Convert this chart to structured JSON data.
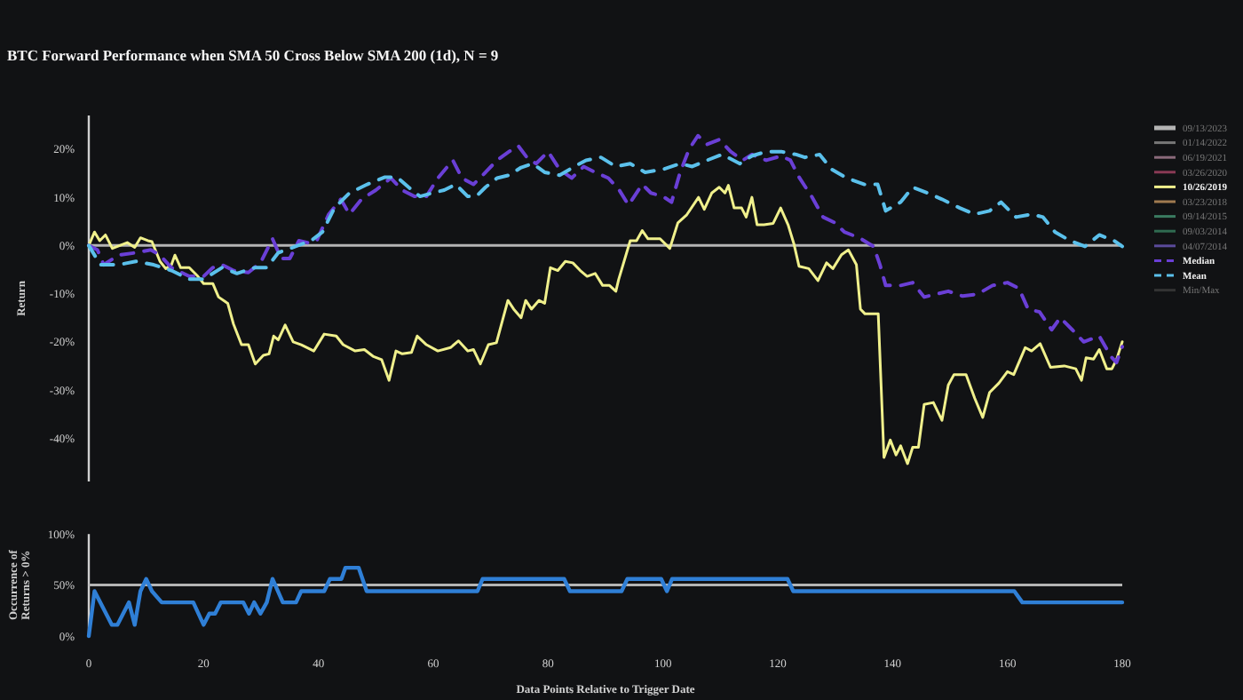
{
  "chart_data": [
    {
      "type": "line",
      "title": "BTC Forward Performance when SMA 50 Cross Below SMA 200 (1d), N = 9",
      "ylabel": "Return",
      "xlim": [
        0,
        180
      ],
      "ylim": [
        -49,
        27
      ],
      "yticks": [
        {
          "value": -40,
          "label": "-40%"
        },
        {
          "value": -30,
          "label": "-30%"
        },
        {
          "value": -20,
          "label": "-20%"
        },
        {
          "value": -10,
          "label": "-10%"
        },
        {
          "value": 0,
          "label": "0%"
        },
        {
          "value": 10,
          "label": "10%"
        },
        {
          "value": 20,
          "label": "20%"
        }
      ],
      "tick_labels": "y",
      "grid": false,
      "legend": "right",
      "marker": "none",
      "ref_lines": [
        {
          "axis": "y",
          "value": 0,
          "color": "#b4b4b4"
        }
      ],
      "series": [
        {
          "name": "09/13/2023",
          "color": "#b4b4b4"
        },
        {
          "name": "01/14/2022",
          "color": "#777777"
        },
        {
          "name": "06/19/2021",
          "color": "#8a6a7a"
        },
        {
          "name": "03/26/2020",
          "color": "#8a3a55"
        },
        {
          "name": "10/26/2019",
          "color": "#f0f08c",
          "x": [
            0,
            1,
            1.9,
            2.9,
            4.1,
            6.7,
            8,
            9,
            10.3,
            11,
            12.4,
            13.4,
            14.4,
            15,
            16,
            17.5,
            19,
            20,
            21.6,
            22.6,
            24.2,
            25.2,
            26.6,
            27.8,
            29,
            30.4,
            31.4,
            32.2,
            33,
            34.2,
            35.6,
            37,
            39.2,
            41,
            43.1,
            44.3,
            46.4,
            48,
            49.5,
            51,
            52.3,
            53.5,
            54.6,
            56.2,
            57.2,
            58.8,
            60.8,
            63,
            64.4,
            66,
            67,
            68.2,
            69.6,
            71,
            73,
            74,
            75.3,
            76.1,
            77.1,
            78.4,
            79.4,
            80.4,
            81.7,
            83,
            84.3,
            85.6,
            86.8,
            88.2,
            89.5,
            90.7,
            91.8,
            92.3,
            94.3,
            95.4,
            96.4,
            97.4,
            99.5,
            101.2,
            102.6,
            104.1,
            106.2,
            107.2,
            108.5,
            109.8,
            110.8,
            111.4,
            112.4,
            113.7,
            114.5,
            115.5,
            116.4,
            117.6,
            119.2,
            120.5,
            121.8,
            122.8,
            123.7,
            125.4,
            127,
            128.5,
            129.6,
            131.1,
            132.3,
            133.7,
            134.4,
            135.2,
            137.5,
            138.5,
            139.6,
            140.6,
            141.4,
            142.6,
            143.5,
            144.5,
            145.5,
            147.1,
            148.6,
            149.7,
            150.7,
            152.8,
            154.3,
            155.7,
            156.9,
            158.5,
            160,
            161.1,
            163.1,
            164.2,
            165.7,
            167.5,
            169.9,
            171.9,
            172.9,
            173.7,
            175,
            176,
            177.3,
            178.2,
            179,
            180
          ],
          "values": [
            0,
            2.8,
            1,
            2.2,
            -0.6,
            0.6,
            -0.4,
            1.6,
            1,
            0.8,
            -3.3,
            -4.8,
            -4,
            -2,
            -4.6,
            -4.6,
            -6.4,
            -7.9,
            -7.9,
            -10.7,
            -12,
            -16.3,
            -20.6,
            -20.6,
            -24.6,
            -22.8,
            -22.5,
            -18.8,
            -19.6,
            -16.5,
            -20,
            -20.6,
            -21.9,
            -18.4,
            -18.8,
            -20.6,
            -21.9,
            -21.6,
            -23,
            -23.7,
            -28,
            -21.9,
            -22.5,
            -22.2,
            -18.8,
            -20.6,
            -21.9,
            -21.2,
            -19.8,
            -21.9,
            -21.6,
            -24.6,
            -20.6,
            -20.2,
            -11.4,
            -13.2,
            -15,
            -11.4,
            -13.2,
            -11.4,
            -12,
            -4.6,
            -5.2,
            -3.3,
            -3.6,
            -5.2,
            -6.4,
            -5.8,
            -8.3,
            -8.3,
            -9.5,
            -7,
            1,
            1,
            3.1,
            1.4,
            1.4,
            -0.6,
            4.7,
            6.3,
            10,
            7.5,
            10.9,
            12.1,
            10.9,
            12.5,
            7.8,
            7.8,
            5.9,
            10,
            4.3,
            4.3,
            4.6,
            7.8,
            4.3,
            0.4,
            -4.3,
            -4.8,
            -7.3,
            -3.6,
            -4.8,
            -1.9,
            -0.9,
            -4,
            -13.2,
            -14.2,
            -14.2,
            -44,
            -40.4,
            -43.5,
            -41.6,
            -45.3,
            -41.9,
            -41.9,
            -33,
            -32.6,
            -36.3,
            -29,
            -26.8,
            -26.8,
            -31.7,
            -35.7,
            -30.5,
            -28.6,
            -26.2,
            -26.8,
            -21.2,
            -21.9,
            -20.4,
            -25.3,
            -25,
            -25.6,
            -28,
            -23.3,
            -23.6,
            -21.6,
            -25.6,
            -25.6,
            -23.7,
            -20
          ]
        },
        {
          "name": "03/23/2018",
          "color": "#a07a50"
        },
        {
          "name": "09/14/2015",
          "color": "#3a7a60"
        },
        {
          "name": "09/03/2014",
          "color": "#2f6a50"
        },
        {
          "name": "04/07/2014",
          "color": "#5a4a9a"
        },
        {
          "name": "Median",
          "color": "#6a3fd6",
          "line_style": "dashed",
          "x": [
            0,
            1.5,
            2.6,
            5.2,
            8.2,
            10.8,
            12.4,
            14.4,
            17.5,
            20,
            21.6,
            23.2,
            25.2,
            27.8,
            29.9,
            32,
            33.5,
            35,
            36.6,
            38.1,
            39.7,
            41.8,
            43.9,
            45.4,
            47.5,
            50,
            52.6,
            54.6,
            56.7,
            58.8,
            60.8,
            63.4,
            65,
            67,
            69.1,
            71.1,
            73.2,
            74.8,
            76.3,
            77.9,
            80,
            82,
            84.1,
            86.2,
            88.2,
            90.5,
            92.4,
            94,
            96.4,
            97.9,
            100,
            101.5,
            103,
            104.6,
            106.1,
            107.7,
            109.8,
            111.8,
            113.9,
            115.5,
            118,
            120.6,
            122.2,
            123.8,
            125.9,
            127.9,
            130,
            131.6,
            134.2,
            136.7,
            137.8,
            138.8,
            141.4,
            143.5,
            145.5,
            147.6,
            149.7,
            152.2,
            154.8,
            157.4,
            160,
            162,
            163.6,
            165.6,
            167.7,
            169.2,
            171.3,
            173.3,
            176,
            178,
            179,
            180
          ],
          "values": [
            0,
            -0.9,
            -4,
            -2,
            -1.5,
            -0.9,
            -2,
            -4.6,
            -6.4,
            -6.4,
            -4.6,
            -4,
            -5.2,
            -5.6,
            -3.6,
            1.4,
            -2.7,
            -2.7,
            1,
            0.6,
            1,
            6.5,
            9.6,
            6.5,
            9.6,
            11.5,
            14,
            11.5,
            10.2,
            10.2,
            14,
            17.7,
            14,
            12.7,
            15.2,
            17.7,
            19.5,
            20.7,
            18.3,
            17,
            19.5,
            15.8,
            14,
            16.4,
            15.2,
            14,
            11.5,
            8.4,
            12.7,
            10.9,
            10.2,
            9,
            15.2,
            20.1,
            22.8,
            21,
            22,
            19.5,
            17.7,
            18.9,
            17.7,
            18.6,
            17.7,
            14,
            10.2,
            5.9,
            4.7,
            2.8,
            1.6,
            -0.2,
            -4,
            -8.3,
            -8.3,
            -7.7,
            -10.7,
            -10.1,
            -9.5,
            -10.5,
            -10.1,
            -8.3,
            -7.7,
            -8.9,
            -13.2,
            -13.8,
            -17.5,
            -15,
            -17.5,
            -20,
            -18.8,
            -23,
            -24.3,
            -21
          ]
        },
        {
          "name": "Mean",
          "color": "#5bc0eb",
          "line_style": "dashed",
          "x": [
            0,
            2,
            5.2,
            8.2,
            11.3,
            14.4,
            17.5,
            20,
            23.2,
            25.8,
            28.9,
            31,
            33,
            36,
            38.7,
            40.7,
            42.8,
            45.4,
            48.5,
            51.6,
            53.7,
            55.7,
            57.7,
            59.8,
            61.9,
            63.9,
            66,
            67.5,
            69.1,
            71.1,
            73.2,
            75.3,
            77.3,
            79.4,
            82,
            84.6,
            86.6,
            89.2,
            91.8,
            94.3,
            96.9,
            100,
            103,
            105.1,
            107.7,
            110.3,
            113.4,
            115.5,
            118,
            120.6,
            123.2,
            124.7,
            127.3,
            129.4,
            132,
            135.1,
            137.4,
            138.8,
            141.4,
            143.5,
            146.1,
            148.6,
            151.7,
            154.3,
            156.9,
            158.9,
            161.5,
            164.2,
            166.2,
            168.3,
            170.9,
            173.5,
            176,
            178.6,
            180
          ],
          "values": [
            0,
            -4,
            -4,
            -3.3,
            -4,
            -5.2,
            -7,
            -7,
            -4.6,
            -5.8,
            -4.6,
            -4.6,
            -1.5,
            -0.2,
            1,
            2.8,
            7.8,
            10.9,
            12.7,
            14.2,
            14.2,
            12.1,
            10.2,
            10.9,
            11.5,
            12.7,
            10.2,
            10.2,
            12.1,
            14,
            14.6,
            16.2,
            17,
            15.2,
            14.6,
            16.4,
            17.7,
            18.3,
            16.4,
            17,
            15.2,
            15.8,
            17,
            16.4,
            17.7,
            18.9,
            17,
            18.6,
            19.5,
            19.5,
            18.9,
            18.3,
            18.9,
            15.8,
            14,
            12.7,
            12.7,
            7.2,
            9,
            12.1,
            10.9,
            9.6,
            7.8,
            6.5,
            7.2,
            9,
            5.9,
            6.5,
            5.9,
            2.8,
            1,
            -0.2,
            2.2,
            1,
            -0.2
          ]
        },
        {
          "name": "Min/Max",
          "color": "#333333"
        }
      ]
    },
    {
      "type": "line",
      "xlabel": "Data Points Relative to Trigger Date",
      "ylabel": "Occurrence of Returns > 0%",
      "xlim": [
        0,
        180
      ],
      "xticks": [
        0,
        20,
        40,
        60,
        80,
        100,
        120,
        140,
        160,
        180
      ],
      "ylim": [
        0,
        100
      ],
      "yticks": [
        {
          "value": 0,
          "label": "0%"
        },
        {
          "value": 50,
          "label": "50%"
        },
        {
          "value": 100,
          "label": "100%"
        }
      ],
      "grid": false,
      "marker": "none",
      "ref_lines": [
        {
          "axis": "y",
          "value": 50,
          "color": "#b4b4b4"
        }
      ],
      "series": [
        {
          "color": "#2f7fd6",
          "x": [
            0,
            1,
            4,
            5,
            7,
            8,
            9,
            10,
            11,
            12.7,
            18.2,
            20,
            21,
            22,
            23,
            26.9,
            27.9,
            28.8,
            29.9,
            31,
            32,
            33.8,
            36.1,
            37,
            41,
            42,
            44,
            44.7,
            47,
            48.4,
            67.7,
            68.6,
            82.8,
            83.8,
            92.8,
            93.8,
            99.7,
            100.7,
            101.6,
            121.7,
            122.7,
            161.2,
            162.6,
            180
          ],
          "values": [
            0,
            44,
            11,
            11,
            33,
            11,
            44,
            56,
            44,
            33,
            33,
            11,
            22,
            22,
            33,
            33,
            22,
            33,
            22,
            33,
            56,
            33,
            33,
            44,
            44,
            56,
            56,
            67,
            67,
            44,
            44,
            56,
            56,
            44,
            44,
            56,
            56,
            44,
            56,
            56,
            44,
            44,
            33,
            33
          ]
        }
      ]
    }
  ]
}
